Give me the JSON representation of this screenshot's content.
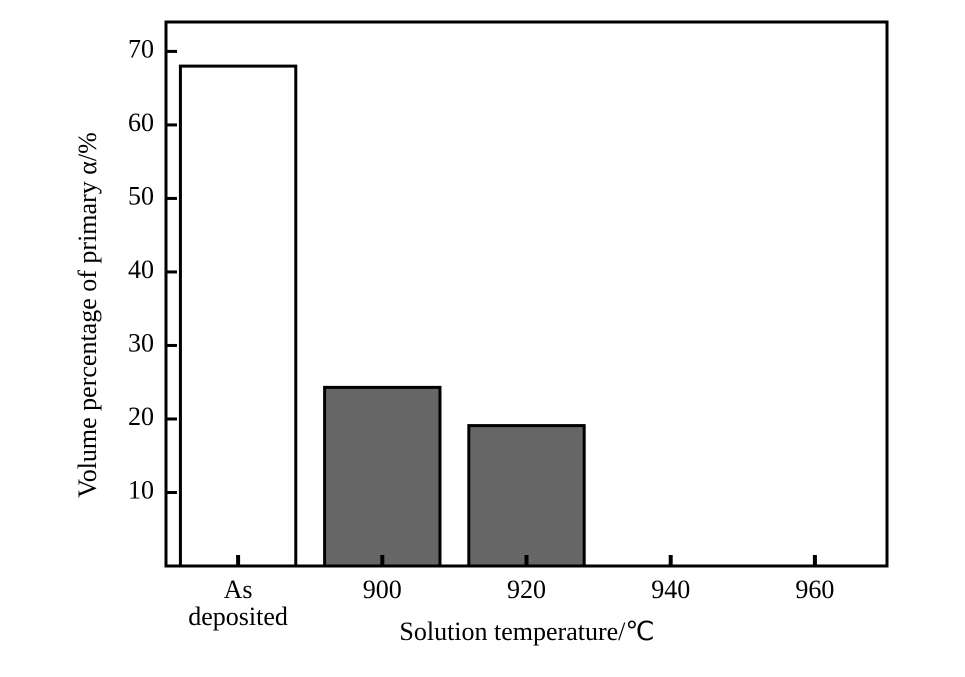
{
  "chart_data": {
    "type": "bar",
    "categories": [
      "As deposited",
      "900",
      "920",
      "940",
      "960"
    ],
    "values": [
      68,
      24.3,
      19.1,
      0,
      0
    ],
    "colors": [
      "#ffffff",
      "#666666",
      "#666666",
      "#666666",
      "#666666"
    ],
    "x_label": "Solution temperature/℃",
    "y_label": "Volume percentage of primary α/%",
    "ylim": [
      0,
      74
    ],
    "yticks": [
      10,
      20,
      30,
      40,
      50,
      60,
      70
    ],
    "grid": false
  }
}
